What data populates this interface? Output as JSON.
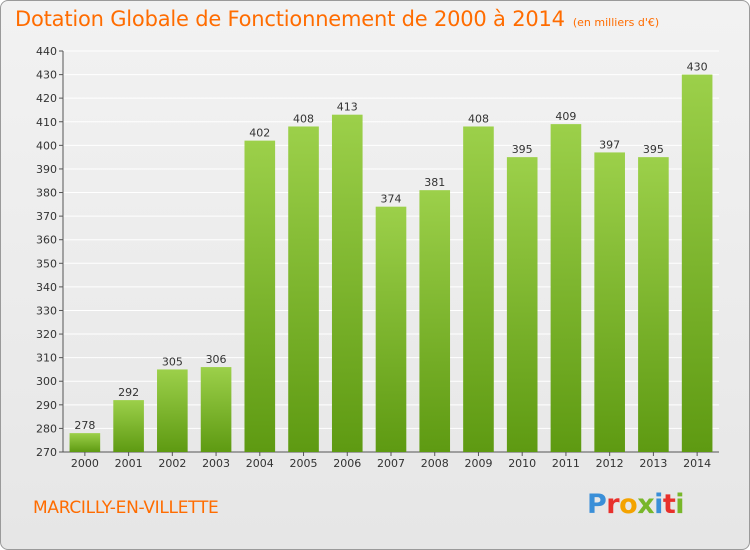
{
  "header": {
    "title": "Dotation Globale de Fonctionnement de 2000 à 2014",
    "subtitle": "(en milliers d'€)"
  },
  "footer": {
    "commune": "MARCILLY-EN-VILLETTE",
    "brand": "Proxiti"
  },
  "colors": {
    "accent": "#ff6c00",
    "bar_top": "#9cd04a",
    "bar_bottom": "#5e9a12",
    "grid": "#ffffff",
    "axis": "#555555",
    "brand_letters": [
      "#3a8fd8",
      "#e8302c",
      "#f4a300",
      "#78b72a",
      "#3a8fd8",
      "#e8302c",
      "#78b72a"
    ]
  },
  "chart_data": {
    "type": "bar",
    "title": "Dotation Globale de Fonctionnement de 2000 à 2014",
    "subtitle": "(en milliers d'€)",
    "categories": [
      "2000",
      "2001",
      "2002",
      "2003",
      "2004",
      "2005",
      "2006",
      "2007",
      "2008",
      "2009",
      "2010",
      "2011",
      "2012",
      "2013",
      "2014"
    ],
    "values": [
      278,
      292,
      305,
      306,
      402,
      408,
      413,
      374,
      381,
      408,
      395,
      409,
      397,
      395,
      430
    ],
    "ylim": [
      270,
      440
    ],
    "yticks": [
      270,
      280,
      290,
      300,
      310,
      320,
      330,
      340,
      350,
      360,
      370,
      380,
      390,
      400,
      410,
      420,
      430,
      440
    ],
    "grid": true,
    "xlabel": "",
    "ylabel": ""
  }
}
